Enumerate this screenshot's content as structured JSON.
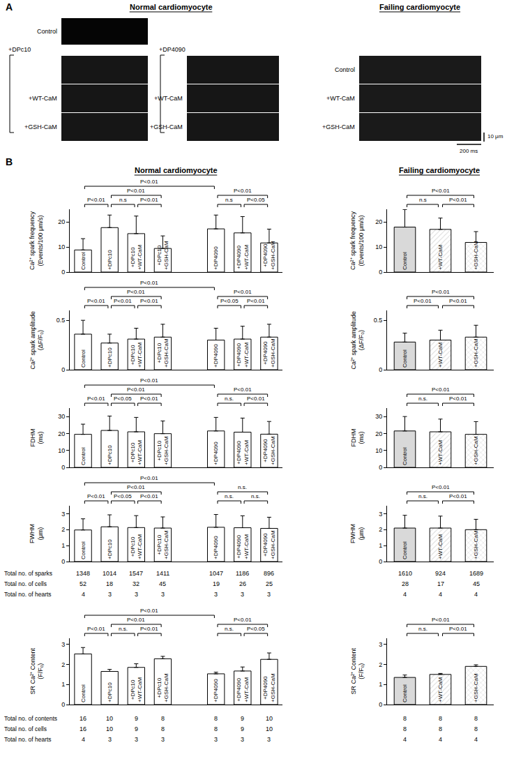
{
  "panel_a": {
    "label": "A",
    "normal": {
      "title": "Normal cardiomyocyte",
      "control": "Control",
      "groups": [
        {
          "label": "+DPc10",
          "rows": [
            "+WT-CaM",
            "+GSH-CaM"
          ]
        },
        {
          "label": "+DP4090",
          "rows": [
            "+WT-CaM",
            "+GSH-CaM"
          ]
        }
      ]
    },
    "failing": {
      "title": "Failing cardiomyocyte",
      "rows": [
        "Control",
        "+WT-CaM",
        "+GSH-CaM"
      ]
    },
    "scale_bar": {
      "vertical": "10 μm",
      "horizontal": "200 ms"
    }
  },
  "panel_b": {
    "label": "B",
    "normal_title": "Normal cardiomyocyte",
    "failing_title": "Failing cardiomyocyte"
  },
  "chart_data": [
    {
      "type": "bar",
      "ylabel": "Ca²⁺ spark frequency (Events/100 μm/s)",
      "categories": [
        "Control",
        "+DPc10",
        "+DPc10 +WT-CaM",
        "+DPc10 +GSH-CaM",
        null,
        "+DP4090",
        "+DP4090 +WT-CaM",
        "+DP4090 +GSH-CaM"
      ],
      "values": [
        8.8,
        17.7,
        15.3,
        9.4,
        null,
        17.2,
        15.6,
        11.6
      ],
      "errors": [
        4.5,
        5.0,
        7.0,
        5.0,
        null,
        5.5,
        6.5,
        5.5
      ],
      "colors": [
        "#ffffff",
        "#ffffff",
        "#ffffff",
        "#ffffff",
        "#ffffff",
        "#ffffff",
        "#ffffff",
        "#ffffff"
      ],
      "ylim": [
        0,
        25
      ],
      "yticks": [
        0,
        10,
        20
      ],
      "grid": false,
      "tick_labels": "y",
      "annotations": [
        {
          "from": 0,
          "to": 1,
          "text": "P<0.01"
        },
        {
          "from": 1,
          "to": 2,
          "text": "n.s"
        },
        {
          "from": 2,
          "to": 3,
          "text": "P<0.01"
        },
        {
          "from": 1,
          "to": 3,
          "text": "P<0.01"
        },
        {
          "from": 5,
          "to": 6,
          "text": "n.s"
        },
        {
          "from": 6,
          "to": 7,
          "text": "P<0.05"
        },
        {
          "from": 5,
          "to": 7,
          "text": "P<0.01"
        },
        {
          "from": 0,
          "to": 5,
          "text": "P<0.01"
        }
      ]
    },
    {
      "type": "bar",
      "ylabel": "Ca²⁺ spark amplitude (ΔF/F₀)",
      "categories": [
        "Control",
        "+DPc10",
        "+DPc10 +WT-CaM",
        "+DPc10 +GSH-CaM",
        null,
        "+DP4090",
        "+DP4090 +WT-CaM",
        "+DP4090 +GSH-CaM"
      ],
      "values": [
        0.36,
        0.27,
        0.31,
        0.33,
        null,
        0.3,
        0.31,
        0.33
      ],
      "errors": [
        0.14,
        0.09,
        0.11,
        0.13,
        null,
        0.12,
        0.13,
        0.13
      ],
      "colors": [
        "#ffffff",
        "#ffffff",
        "#ffffff",
        "#ffffff",
        "#ffffff",
        "#ffffff",
        "#ffffff",
        "#ffffff"
      ],
      "ylim": [
        0,
        0.6
      ],
      "yticks": [
        0,
        0.5
      ],
      "grid": false,
      "tick_labels": "y",
      "annotations": [
        {
          "from": 0,
          "to": 1,
          "text": "P<0.01"
        },
        {
          "from": 1,
          "to": 2,
          "text": "P<0.01"
        },
        {
          "from": 2,
          "to": 3,
          "text": "P<0.01"
        },
        {
          "from": 1,
          "to": 3,
          "text": "P<0.01"
        },
        {
          "from": 5,
          "to": 6,
          "text": "P<0.05"
        },
        {
          "from": 6,
          "to": 7,
          "text": "P<0.01"
        },
        {
          "from": 5,
          "to": 7,
          "text": "P<0.01"
        },
        {
          "from": 0,
          "to": 5,
          "text": "P<0.01"
        }
      ]
    },
    {
      "type": "bar",
      "ylabel": "FDHM (ms)",
      "categories": [
        "Control",
        "+DPc10",
        "+DPc10 +WT-CaM",
        "+DPc10 +GSH-CaM",
        null,
        "+DP4090",
        "+DP4090 +WT-CaM",
        "+DP4090 +GSH-CaM"
      ],
      "values": [
        19.5,
        21.8,
        21.0,
        19.9,
        null,
        21.5,
        20.8,
        19.6
      ],
      "errors": [
        6.0,
        8.5,
        8.5,
        7.5,
        null,
        8.0,
        8.3,
        7.5
      ],
      "colors": [
        "#ffffff",
        "#ffffff",
        "#ffffff",
        "#ffffff",
        "#ffffff",
        "#ffffff",
        "#ffffff",
        "#ffffff"
      ],
      "ylim": [
        0,
        35
      ],
      "yticks": [
        0,
        10,
        20,
        30
      ],
      "grid": false,
      "tick_labels": "y",
      "annotations": [
        {
          "from": 0,
          "to": 1,
          "text": "P<0.01"
        },
        {
          "from": 1,
          "to": 2,
          "text": "P<0.05"
        },
        {
          "from": 2,
          "to": 3,
          "text": "P<0.01"
        },
        {
          "from": 1,
          "to": 3,
          "text": "P<0.01"
        },
        {
          "from": 5,
          "to": 6,
          "text": "n.s."
        },
        {
          "from": 6,
          "to": 7,
          "text": "P<0.01"
        },
        {
          "from": 5,
          "to": 7,
          "text": "P<0.01"
        },
        {
          "from": 0,
          "to": 5,
          "text": "P<0.01"
        }
      ]
    },
    {
      "type": "bar",
      "ylabel": "FWHM (μm)",
      "categories": [
        "Control",
        "+DPc10",
        "+DPc10 +WT-CaM",
        "+DPc10 +GSH-CaM",
        null,
        "+DP4090",
        "+DP4090 +WT-CaM",
        "+DP4090 +GSH-CaM"
      ],
      "values": [
        1.98,
        2.18,
        2.13,
        2.1,
        null,
        2.15,
        2.12,
        2.08
      ],
      "errors": [
        0.7,
        0.75,
        0.75,
        0.7,
        null,
        0.8,
        0.75,
        0.7
      ],
      "colors": [
        "#ffffff",
        "#ffffff",
        "#ffffff",
        "#ffffff",
        "#ffffff",
        "#ffffff",
        "#ffffff",
        "#ffffff"
      ],
      "ylim": [
        0,
        3.5
      ],
      "yticks": [
        0,
        1,
        2,
        3
      ],
      "grid": false,
      "tick_labels": "y",
      "annotations": [
        {
          "from": 0,
          "to": 1,
          "text": "P<0.01"
        },
        {
          "from": 1,
          "to": 2,
          "text": "P<0.05"
        },
        {
          "from": 2,
          "to": 3,
          "text": "P<0.01"
        },
        {
          "from": 1,
          "to": 3,
          "text": "P<0.01"
        },
        {
          "from": 5,
          "to": 6,
          "text": "n.s."
        },
        {
          "from": 6,
          "to": 7,
          "text": "n.s."
        },
        {
          "from": 5,
          "to": 7,
          "text": "n.s."
        },
        {
          "from": 0,
          "to": 5,
          "text": "P<0.01"
        }
      ]
    },
    {
      "type": "bar",
      "ylabel": "SR Ca²⁺ Content (F/F₀)",
      "categories": [
        "Control",
        "+DPc10",
        "+DPc10 +WT-CaM",
        "+DPc10 +GSH-CaM",
        null,
        "+DP4090",
        "+DP4090 +WT-CaM",
        "+DP4090 +GSH-CaM"
      ],
      "values": [
        2.52,
        1.65,
        1.85,
        2.28,
        null,
        1.53,
        1.67,
        2.25
      ],
      "errors": [
        0.32,
        0.1,
        0.18,
        0.12,
        null,
        0.08,
        0.2,
        0.32
      ],
      "colors": [
        "#ffffff",
        "#ffffff",
        "#ffffff",
        "#ffffff",
        "#ffffff",
        "#ffffff",
        "#ffffff",
        "#ffffff"
      ],
      "ylim": [
        0,
        3.3
      ],
      "yticks": [
        0,
        1,
        2,
        3
      ],
      "grid": false,
      "tick_labels": "y",
      "annotations": [
        {
          "from": 0,
          "to": 1,
          "text": "P<0.01"
        },
        {
          "from": 1,
          "to": 2,
          "text": "n.s."
        },
        {
          "from": 2,
          "to": 3,
          "text": "P<0.01"
        },
        {
          "from": 1,
          "to": 3,
          "text": "P<0.01"
        },
        {
          "from": 5,
          "to": 6,
          "text": "n.s."
        },
        {
          "from": 6,
          "to": 7,
          "text": "P<0.05"
        },
        {
          "from": 5,
          "to": 7,
          "text": "P<0.01"
        },
        {
          "from": 0,
          "to": 5,
          "text": "P<0.01"
        }
      ]
    },
    {
      "type": "bar",
      "ylabel": "Ca²⁺ spark frequency (Events/100 μm/s)",
      "categories": [
        "Control",
        "+WT-CaM",
        "+GSH-CaM"
      ],
      "values": [
        17.9,
        17.0,
        11.8
      ],
      "errors": [
        7.0,
        4.5,
        4.3
      ],
      "colors": [
        "#d9d9d9",
        "#d9d9d9",
        "#d9d9d9"
      ],
      "ylim": [
        0,
        25
      ],
      "yticks": [
        0,
        10,
        20
      ],
      "grid": false,
      "tick_labels": "y",
      "annotations": [
        {
          "from": 0,
          "to": 1,
          "text": "n.s"
        },
        {
          "from": 1,
          "to": 2,
          "text": "P<0.01"
        },
        {
          "from": 0,
          "to": 2,
          "text": "P<0.01"
        }
      ]
    },
    {
      "type": "bar",
      "ylabel": "Ca²⁺ spark amplitude (ΔF/F₀)",
      "categories": [
        "Control",
        "+WT-CaM",
        "+GSH-CaM"
      ],
      "values": [
        0.28,
        0.3,
        0.33
      ],
      "errors": [
        0.09,
        0.1,
        0.12
      ],
      "colors": [
        "#d9d9d9",
        "#d9d9d9",
        "#d9d9d9"
      ],
      "ylim": [
        0,
        0.6
      ],
      "yticks": [
        0,
        0.5
      ],
      "grid": false,
      "tick_labels": "y",
      "annotations": [
        {
          "from": 0,
          "to": 1,
          "text": "P<0.01"
        },
        {
          "from": 1,
          "to": 2,
          "text": "P<0.01"
        },
        {
          "from": 0,
          "to": 2,
          "text": "P<0.01"
        }
      ]
    },
    {
      "type": "bar",
      "ylabel": "FDHM (ms)",
      "categories": [
        "Control",
        "+WT-CaM",
        "+GSH-CaM"
      ],
      "values": [
        21.5,
        21.0,
        19.5
      ],
      "errors": [
        8.5,
        7.5,
        7.5
      ],
      "colors": [
        "#d9d9d9",
        "#d9d9d9",
        "#d9d9d9"
      ],
      "ylim": [
        0,
        35
      ],
      "yticks": [
        0,
        10,
        20,
        30
      ],
      "grid": false,
      "tick_labels": "y",
      "annotations": [
        {
          "from": 0,
          "to": 1,
          "text": "n.s."
        },
        {
          "from": 1,
          "to": 2,
          "text": "P<0.01"
        },
        {
          "from": 0,
          "to": 2,
          "text": "P<0.01"
        }
      ]
    },
    {
      "type": "bar",
      "ylabel": "FWHM (μm)",
      "categories": [
        "Control",
        "+WT-CaM",
        "+GSH-CaM"
      ],
      "values": [
        2.1,
        2.1,
        2.0
      ],
      "errors": [
        0.8,
        0.75,
        0.65
      ],
      "colors": [
        "#d9d9d9",
        "#d9d9d9",
        "#d9d9d9"
      ],
      "ylim": [
        0,
        3.5
      ],
      "yticks": [
        0,
        1,
        2,
        3
      ],
      "grid": false,
      "tick_labels": "y",
      "annotations": [
        {
          "from": 0,
          "to": 1,
          "text": "n.s."
        },
        {
          "from": 1,
          "to": 2,
          "text": "P<0.01"
        },
        {
          "from": 0,
          "to": 2,
          "text": "P<0.01"
        }
      ]
    },
    {
      "type": "bar",
      "ylabel": "SR Ca²⁺ Content (F/F₀)",
      "categories": [
        "Control",
        "+WT-CaM",
        "+GSH-CaM"
      ],
      "values": [
        1.35,
        1.5,
        1.9
      ],
      "errors": [
        0.12,
        0.05,
        0.08
      ],
      "colors": [
        "#d9d9d9",
        "#d9d9d9",
        "#d9d9d9"
      ],
      "ylim": [
        0,
        3.3
      ],
      "yticks": [
        0,
        1,
        2,
        3
      ],
      "grid": false,
      "tick_labels": "y",
      "annotations": [
        {
          "from": 0,
          "to": 1,
          "text": "n.s."
        },
        {
          "from": 1,
          "to": 2,
          "text": "P<0.01"
        },
        {
          "from": 0,
          "to": 2,
          "text": "P<0.01"
        }
      ]
    }
  ],
  "count_tables": [
    {
      "rows": [
        {
          "label": "Total no. of sparks",
          "normal": [
            1348,
            1014,
            1547,
            1411,
            null,
            1047,
            1186,
            896
          ],
          "failing": [
            1610,
            924,
            1689
          ]
        },
        {
          "label": "Total no. of cells",
          "normal": [
            52,
            18,
            32,
            45,
            null,
            19,
            26,
            25
          ],
          "failing": [
            28,
            17,
            45
          ]
        },
        {
          "label": "Total no. of hearts",
          "normal": [
            4,
            3,
            3,
            3,
            null,
            3,
            3,
            3
          ],
          "failing": [
            4,
            4,
            4
          ]
        }
      ]
    },
    {
      "rows": [
        {
          "label": "Total no. of contents",
          "normal": [
            16,
            10,
            9,
            8,
            null,
            8,
            9,
            10
          ],
          "failing": [
            8,
            8,
            8
          ]
        },
        {
          "label": "Total no. of cells",
          "normal": [
            16,
            10,
            9,
            8,
            null,
            8,
            9,
            10
          ],
          "failing": [
            8,
            8,
            8
          ]
        },
        {
          "label": "Total no. of hearts",
          "normal": [
            4,
            3,
            3,
            3,
            null,
            3,
            3,
            3
          ],
          "failing": [
            4,
            4,
            4
          ]
        }
      ]
    }
  ]
}
